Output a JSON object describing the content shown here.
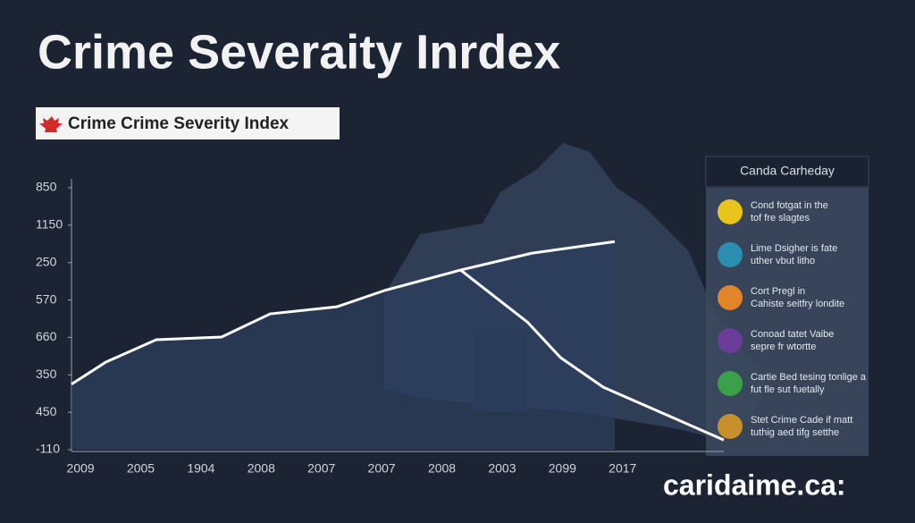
{
  "chart_data": {
    "type": "line",
    "title": "Crime Severaity Inrdex",
    "subtitle": "Crime Crime Severity Index",
    "categories": [
      "2009",
      "2005",
      "1904",
      "2008",
      "2007",
      "2007",
      "2008",
      "2003",
      "2099",
      "2017"
    ],
    "xlim": [
      -0.15,
      10.68
    ],
    "ylim": [
      0,
      7
    ],
    "yticks": [
      {
        "value": 0,
        "label": "-110"
      },
      {
        "value": 1,
        "label": "450"
      },
      {
        "value": 2,
        "label": "350"
      },
      {
        "value": 3,
        "label": "660"
      },
      {
        "value": 4,
        "label": "570"
      },
      {
        "value": 5,
        "label": "250"
      },
      {
        "value": 6,
        "label": "1150"
      },
      {
        "value": 7,
        "label": "850"
      }
    ],
    "series": [
      {
        "color": "#ffffff",
        "x": [
          -0.15,
          0.42,
          1.26,
          2.34,
          3.15,
          4.26,
          5.04,
          6.31,
          7.49,
          8.87
        ],
        "values": [
          1.75,
          2.34,
          2.94,
          3.01,
          3.63,
          3.82,
          4.25,
          4.8,
          5.25,
          5.56
        ]
      },
      {
        "color": "#ffffff",
        "x": [
          6.31,
          7.42,
          7.97,
          8.68,
          10.68
        ],
        "values": [
          4.8,
          3.41,
          2.46,
          1.67,
          0.26
        ]
      }
    ],
    "legend": {
      "title": "Canda Carheday",
      "items": [
        "Cond fotgat in the tof fre slagtes",
        "Lime Dsigher is fate uther vbut litho",
        "Cort Pregl in Cahiste seitfry londite",
        "Conoad tatet Vaibe sepre fr wtortte",
        "Cartie Bed tesing tonlige a fut fle sut fuetally",
        "Stet Crime Cade if matt tuthig aed tifg setthe"
      ],
      "colors": [
        "#e8c41c",
        "#2a8fb0",
        "#e0852a",
        "#6a3d9a",
        "#3aa04a",
        "#c8902a"
      ]
    },
    "footer": "caridaime.ca:"
  }
}
